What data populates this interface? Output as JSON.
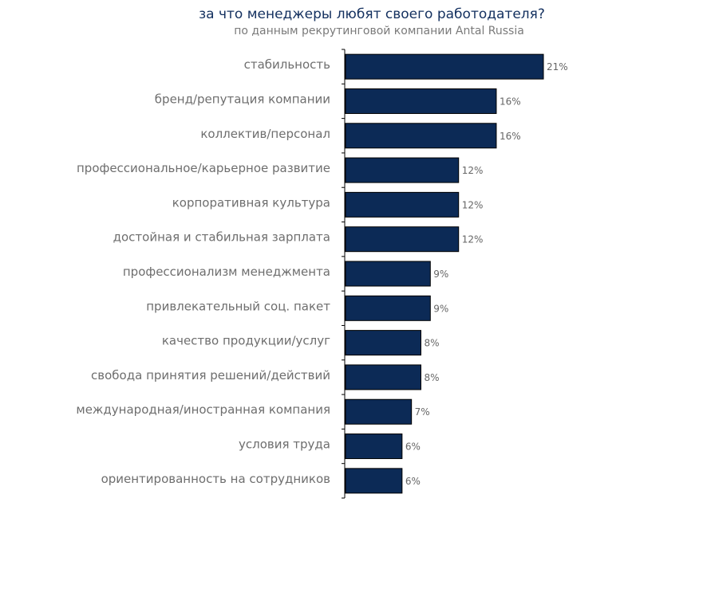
{
  "chart_data": {
    "type": "bar",
    "orientation": "horizontal",
    "title": "за что менеджеры любят своего работодателя?",
    "subtitle": "по данным рекрутинговой компании Antal Russia",
    "categories": [
      "стабильность",
      "бренд/репутация компании",
      "коллектив/персонал",
      "профессиональное/карьерное развитие",
      "корпоративная культура",
      "достойная и стабильная зарплата",
      "профессионализм менеджмента",
      "привлекательный соц. пакет",
      "качество продукции/услуг",
      "свобода принятия решений/действий",
      "международная/иностранная компания",
      "условия труда",
      "ориентированность на сотрудников"
    ],
    "values": [
      21,
      16,
      16,
      12,
      12,
      12,
      9,
      9,
      8,
      8,
      7,
      6,
      6
    ],
    "value_labels": [
      "21%",
      "16%",
      "16%",
      "12%",
      "12%",
      "12%",
      "9%",
      "9%",
      "8%",
      "8%",
      "7%",
      "6%",
      "6%"
    ],
    "unit": "%",
    "grid": false,
    "legend": "none",
    "colors": {
      "bar": "#0c2a56",
      "bar_border": "#000000",
      "title": "#13305f",
      "subtitle": "#7a7a7a",
      "category_text": "#6e6e6e",
      "value_text": "#666666",
      "axis": "#000000"
    }
  }
}
